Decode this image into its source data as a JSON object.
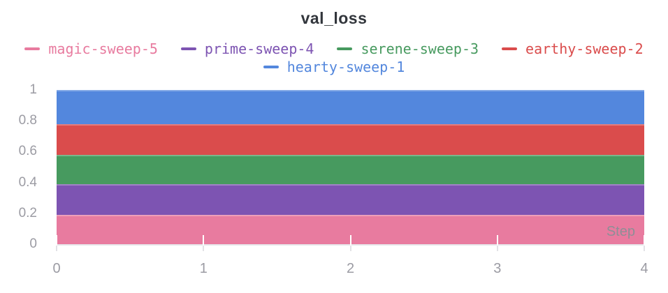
{
  "chart_data": {
    "type": "area",
    "stacked": true,
    "title": "val_loss",
    "xlabel": "Step",
    "x": [
      0,
      1,
      2,
      3,
      4
    ],
    "xlim": [
      0,
      4
    ],
    "ylim": [
      0,
      1
    ],
    "xticks": [
      0,
      1,
      2,
      3,
      4
    ],
    "xtick_labels": [
      "0",
      "1",
      "2",
      "3",
      "4"
    ],
    "yticks": [
      0,
      0.2,
      0.4,
      0.6,
      0.8,
      1
    ],
    "ytick_labels": [
      "0",
      "0.2",
      "0.4",
      "0.6",
      "0.8",
      "1"
    ],
    "grid": false,
    "legend_position": "top",
    "series": [
      {
        "name": "magic-sweep-5",
        "color": "#E87B9F",
        "values": [
          0.19,
          0.19,
          0.19,
          0.19,
          0.19
        ]
      },
      {
        "name": "prime-sweep-4",
        "color": "#7D54B2",
        "values": [
          0.2,
          0.2,
          0.2,
          0.2,
          0.2
        ]
      },
      {
        "name": "serene-sweep-3",
        "color": "#479A5F",
        "values": [
          0.19,
          0.19,
          0.19,
          0.19,
          0.19
        ]
      },
      {
        "name": "earthy-sweep-2",
        "color": "#DA4C4C",
        "values": [
          0.2,
          0.2,
          0.2,
          0.2,
          0.2
        ]
      },
      {
        "name": "hearty-sweep-1",
        "color": "#5387DD",
        "values": [
          0.22,
          0.22,
          0.22,
          0.22,
          0.22
        ]
      }
    ],
    "stacking_order": "bottom-to-top as listed"
  },
  "colors": {
    "background": "#FFFFFF",
    "title_text": "#32363C",
    "tick_text": "#9B9BA3",
    "step_label_text": "#8E8E96",
    "axis_line": "#E6E6EA"
  }
}
